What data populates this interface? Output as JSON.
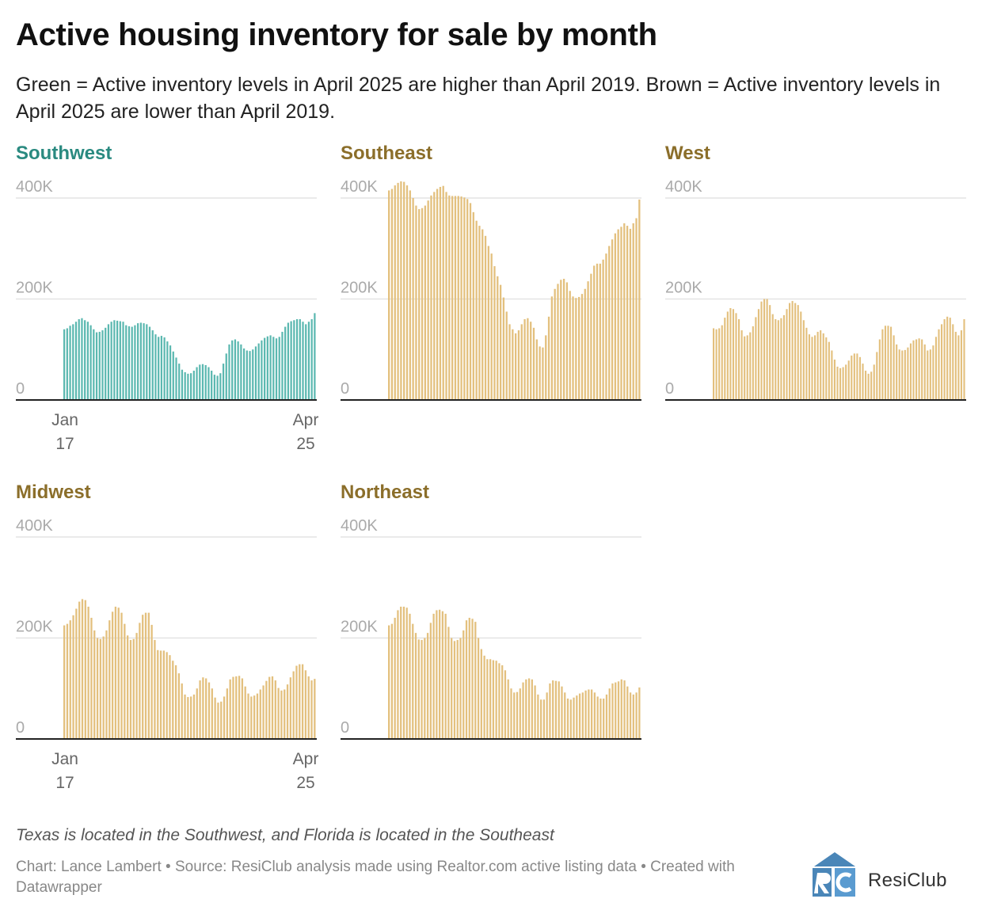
{
  "title": "Active housing inventory for sale by month",
  "subtitle": "Green = Active inventory levels in April 2025 are higher than April 2019. Brown = Active inventory levels in April 2025 are lower than April 2019.",
  "note": "Texas is located in the Southwest, and Florida is located in the Southeast",
  "credit": "Chart: Lance Lambert • Source: ResiClub analysis made using Realtor.com active listing data • Created with Datawrapper",
  "logo": {
    "text": "ResiClub",
    "mark": "RC"
  },
  "colors": {
    "green": "#5bb8b0",
    "green_title": "#2a8a80",
    "brown": "#e3c07e",
    "brown_title": "#8b6e2a",
    "grid": "#e4e4e4",
    "axis": "#222222"
  },
  "chart_data": [
    {
      "type": "bar",
      "title": "Southwest",
      "color": "green",
      "x_start": "2017-01",
      "x_end": "2025-04",
      "xlabels": [
        {
          "top": "Jan",
          "bottom": "17"
        },
        {
          "top": "Apr",
          "bottom": "25"
        }
      ],
      "yticks": [
        "400K",
        "200K",
        "0"
      ],
      "ylim": [
        0,
        400000
      ],
      "values": [
        140000,
        142000,
        147000,
        150000,
        155000,
        160000,
        162000,
        158000,
        155000,
        148000,
        140000,
        134000,
        135000,
        138000,
        143000,
        150000,
        155000,
        158000,
        157000,
        156000,
        155000,
        148000,
        146000,
        145000,
        148000,
        152000,
        153000,
        152000,
        150000,
        145000,
        138000,
        130000,
        125000,
        127000,
        124000,
        116000,
        108000,
        96000,
        84000,
        72000,
        60000,
        55000,
        52000,
        53000,
        58000,
        65000,
        70000,
        71000,
        69000,
        65000,
        58000,
        50000,
        48000,
        53000,
        72000,
        92000,
        110000,
        118000,
        120000,
        116000,
        110000,
        102000,
        98000,
        97000,
        100000,
        106000,
        112000,
        118000,
        123000,
        126000,
        128000,
        125000,
        122000,
        125000,
        135000,
        145000,
        153000,
        156000,
        158000,
        160000,
        160000,
        155000,
        150000,
        155000,
        160000,
        172000
      ]
    },
    {
      "type": "bar",
      "title": "Southeast",
      "color": "brown",
      "x_start": "2017-01",
      "x_end": "2025-04",
      "xlabels": [],
      "yticks": [
        "400K",
        "200K",
        "0"
      ],
      "ylim": [
        0,
        400000
      ],
      "values": [
        415000,
        418000,
        425000,
        430000,
        433000,
        432000,
        425000,
        415000,
        400000,
        385000,
        378000,
        380000,
        385000,
        395000,
        405000,
        412000,
        418000,
        422000,
        424000,
        412000,
        405000,
        404000,
        404000,
        404000,
        403000,
        401000,
        398000,
        390000,
        372000,
        355000,
        345000,
        338000,
        325000,
        305000,
        290000,
        265000,
        245000,
        228000,
        203000,
        175000,
        150000,
        140000,
        132000,
        138000,
        150000,
        160000,
        162000,
        155000,
        143000,
        120000,
        106000,
        104000,
        128000,
        165000,
        205000,
        220000,
        230000,
        238000,
        240000,
        233000,
        216000,
        205000,
        202000,
        204000,
        210000,
        220000,
        235000,
        250000,
        266000,
        270000,
        270000,
        278000,
        290000,
        305000,
        318000,
        330000,
        338000,
        343000,
        350000,
        345000,
        339000,
        350000,
        360000,
        397000
      ]
    },
    {
      "type": "bar",
      "title": "West",
      "color": "brown",
      "x_start": "2017-01",
      "x_end": "2025-04",
      "xlabels": [],
      "yticks": [
        "400K",
        "200K",
        "0"
      ],
      "ylim": [
        0,
        400000
      ],
      "values": [
        142000,
        140000,
        142000,
        148000,
        163000,
        175000,
        182000,
        180000,
        172000,
        160000,
        138000,
        126000,
        128000,
        134000,
        146000,
        164000,
        180000,
        195000,
        200000,
        200000,
        188000,
        170000,
        160000,
        158000,
        162000,
        168000,
        180000,
        192000,
        196000,
        192000,
        188000,
        175000,
        158000,
        143000,
        130000,
        125000,
        128000,
        135000,
        138000,
        132000,
        124000,
        115000,
        98000,
        80000,
        66000,
        63000,
        65000,
        70000,
        78000,
        88000,
        92000,
        92000,
        85000,
        72000,
        58000,
        52000,
        56000,
        70000,
        95000,
        120000,
        140000,
        147000,
        147000,
        145000,
        128000,
        110000,
        100000,
        98000,
        99000,
        104000,
        112000,
        118000,
        120000,
        122000,
        120000,
        110000,
        98000,
        100000,
        108000,
        125000,
        140000,
        150000,
        160000,
        165000,
        163000,
        150000,
        135000,
        128000,
        138000,
        160000
      ]
    },
    {
      "type": "bar",
      "title": "Midwest",
      "color": "brown",
      "x_start": "2017-01",
      "x_end": "2025-04",
      "xlabels": [
        {
          "top": "Jan",
          "bottom": "17"
        },
        {
          "top": "Apr",
          "bottom": "25"
        }
      ],
      "yticks": [
        "400K",
        "200K",
        "0"
      ],
      "ylim": [
        0,
        400000
      ],
      "values": [
        225000,
        228000,
        235000,
        245000,
        258000,
        272000,
        277000,
        275000,
        262000,
        240000,
        215000,
        200000,
        198000,
        203000,
        215000,
        235000,
        252000,
        262000,
        260000,
        250000,
        228000,
        205000,
        196000,
        198000,
        210000,
        230000,
        246000,
        250000,
        250000,
        226000,
        196000,
        176000,
        175000,
        175000,
        172000,
        166000,
        155000,
        146000,
        130000,
        110000,
        88000,
        83000,
        84000,
        88000,
        100000,
        116000,
        122000,
        120000,
        112000,
        100000,
        82000,
        72000,
        74000,
        84000,
        100000,
        118000,
        123000,
        124000,
        125000,
        120000,
        104000,
        90000,
        84000,
        86000,
        90000,
        98000,
        106000,
        115000,
        123000,
        124000,
        116000,
        101000,
        96000,
        98000,
        108000,
        122000,
        134000,
        145000,
        148000,
        148000,
        136000,
        124000,
        116000,
        119000
      ]
    },
    {
      "type": "bar",
      "title": "Northeast",
      "color": "brown",
      "x_start": "2017-01",
      "x_end": "2025-04",
      "xlabels": [],
      "yticks": [
        "400K",
        "200K",
        "0"
      ],
      "ylim": [
        0,
        400000
      ],
      "values": [
        225000,
        228000,
        240000,
        255000,
        262000,
        262000,
        260000,
        248000,
        228000,
        210000,
        197000,
        196000,
        200000,
        210000,
        230000,
        248000,
        255000,
        256000,
        253000,
        248000,
        222000,
        200000,
        194000,
        196000,
        200000,
        215000,
        235000,
        240000,
        238000,
        232000,
        200000,
        178000,
        165000,
        158000,
        158000,
        156000,
        155000,
        150000,
        146000,
        136000,
        118000,
        100000,
        92000,
        93000,
        100000,
        112000,
        118000,
        120000,
        118000,
        106000,
        88000,
        78000,
        78000,
        92000,
        110000,
        116000,
        115000,
        114000,
        104000,
        92000,
        80000,
        78000,
        82000,
        86000,
        90000,
        92000,
        96000,
        98000,
        98000,
        92000,
        84000,
        80000,
        80000,
        88000,
        100000,
        110000,
        112000,
        114000,
        118000,
        116000,
        104000,
        92000,
        88000,
        92000,
        102000
      ]
    }
  ]
}
